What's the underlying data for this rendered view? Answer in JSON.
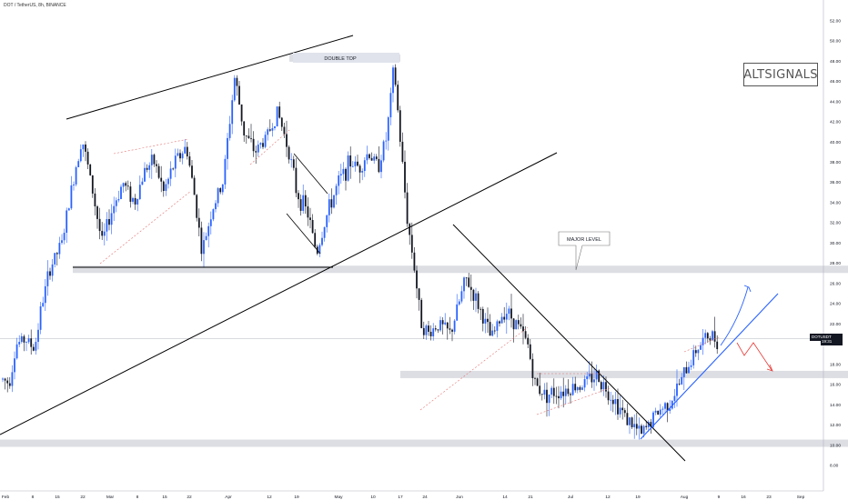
{
  "header": {
    "symbol_line": "DOT / TetherUS, 8h, BINANCE"
  },
  "brand": {
    "label": "ALTSIGNALS"
  },
  "price_badge": {
    "symbol": "DOTUSDT",
    "value": "20.557",
    "countdown": "19:31"
  },
  "annotations": {
    "double_top": "DOUBLE TOP",
    "major_level": "MAJOR LEVEL"
  },
  "colors": {
    "up": "#2962ff",
    "down": "#131722",
    "level_band": "#d6d8de",
    "trend": "#000000",
    "pattern_dash": "#e57373",
    "projection_up": "#2962ff",
    "projection_down": "#e53935",
    "grid_line": "#b2b5be"
  },
  "chart_data": {
    "type": "candlestick",
    "title": "DOT / TetherUS, 8h, BINANCE",
    "y_axis": {
      "side": "right",
      "ylim": [
        6.6,
        53.5
      ],
      "ticks": [
        "52.00",
        "50.00",
        "48.00",
        "46.00",
        "44.00",
        "42.00",
        "40.00",
        "38.00",
        "36.00",
        "34.00",
        "32.00",
        "30.00",
        "28.00",
        "26.00",
        "24.00",
        "22.00",
        "20.00",
        "18.00",
        "16.00",
        "14.00",
        "12.00",
        "10.00",
        "8.00"
      ]
    },
    "x_axis": {
      "ticks": [
        "Feb",
        "8",
        "15",
        "22",
        "Mar",
        "8",
        "15",
        "22",
        "Apr",
        "12",
        "19",
        "May",
        "10",
        "17",
        "24",
        "Jun",
        "14",
        "21",
        "Jul",
        "12",
        "19",
        "Aug",
        "9",
        "16",
        "23",
        "Sep"
      ]
    },
    "current_price": 20.557,
    "horizontal_levels": [
      {
        "price": 27.4
      },
      {
        "price": 17.0
      },
      {
        "price": 10.2
      },
      {
        "price": 48.3
      }
    ],
    "price_path": [
      [
        3,
        16.5
      ],
      [
        10,
        16.2
      ],
      [
        18,
        20
      ],
      [
        28,
        20.5
      ],
      [
        38,
        19.5
      ],
      [
        45,
        23.5
      ],
      [
        55,
        27.5
      ],
      [
        68,
        30
      ],
      [
        80,
        36
      ],
      [
        90,
        40.5
      ],
      [
        100,
        36
      ],
      [
        112,
        30
      ],
      [
        122,
        33
      ],
      [
        135,
        36
      ],
      [
        148,
        34
      ],
      [
        160,
        37.5
      ],
      [
        170,
        38
      ],
      [
        180,
        35
      ],
      [
        192,
        38
      ],
      [
        205,
        39.5
      ],
      [
        215,
        34
      ],
      [
        222,
        29
      ],
      [
        232,
        33
      ],
      [
        245,
        36
      ],
      [
        258,
        46.5
      ],
      [
        268,
        41
      ],
      [
        280,
        39
      ],
      [
        293,
        40.5
      ],
      [
        305,
        43
      ],
      [
        318,
        39
      ],
      [
        326,
        35
      ],
      [
        338,
        33
      ],
      [
        348,
        29
      ],
      [
        360,
        33
      ],
      [
        372,
        36
      ],
      [
        385,
        38
      ],
      [
        395,
        37.5
      ],
      [
        405,
        39
      ],
      [
        415,
        37.5
      ],
      [
        425,
        40.5
      ],
      [
        433,
        47.5
      ],
      [
        440,
        40
      ],
      [
        448,
        32
      ],
      [
        455,
        28
      ],
      [
        462,
        22.5
      ],
      [
        470,
        21
      ],
      [
        482,
        22
      ],
      [
        495,
        21
      ],
      [
        512,
        26.5
      ],
      [
        525,
        24
      ],
      [
        540,
        20.5
      ],
      [
        555,
        23.5
      ],
      [
        568,
        22
      ],
      [
        580,
        20
      ],
      [
        588,
        16
      ],
      [
        600,
        15
      ],
      [
        620,
        15.5
      ],
      [
        640,
        16
      ],
      [
        655,
        17
      ],
      [
        675,
        14.5
      ],
      [
        690,
        12.5
      ],
      [
        705,
        11
      ],
      [
        720,
        13
      ],
      [
        738,
        14.5
      ],
      [
        752,
        17
      ],
      [
        765,
        19.5
      ],
      [
        778,
        20.8
      ],
      [
        790,
        20.5
      ]
    ]
  }
}
